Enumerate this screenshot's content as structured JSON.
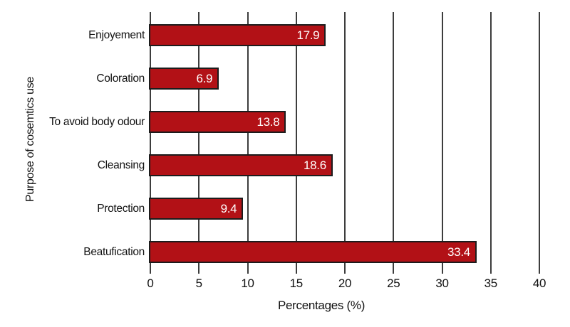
{
  "chart_data": {
    "type": "bar",
    "orientation": "horizontal",
    "title": "",
    "xlabel": "Percentages (%)",
    "ylabel": "Purpose of cosemtics use",
    "categories": [
      "Enjoyement",
      "Coloration",
      "To avoid body odour",
      "Cleansing",
      "Protection",
      "Beatufication"
    ],
    "values": [
      17.9,
      6.9,
      13.8,
      18.6,
      9.4,
      33.4
    ],
    "value_labels": [
      "17.9",
      "6.9",
      "13.8",
      "18.6",
      "9.4",
      "33.4"
    ],
    "xlim": [
      0,
      40
    ],
    "xticks": [
      0,
      5,
      10,
      15,
      20,
      25,
      30,
      35,
      40
    ],
    "grid": "vertical",
    "legend": "none",
    "colors": {
      "bar_fill": "#b21116",
      "bar_border": "#1c1c1c",
      "gridline": "#3d3d3d",
      "value_text": "#ffffff",
      "axis_text": "#111111",
      "background": "#ffffff"
    }
  }
}
